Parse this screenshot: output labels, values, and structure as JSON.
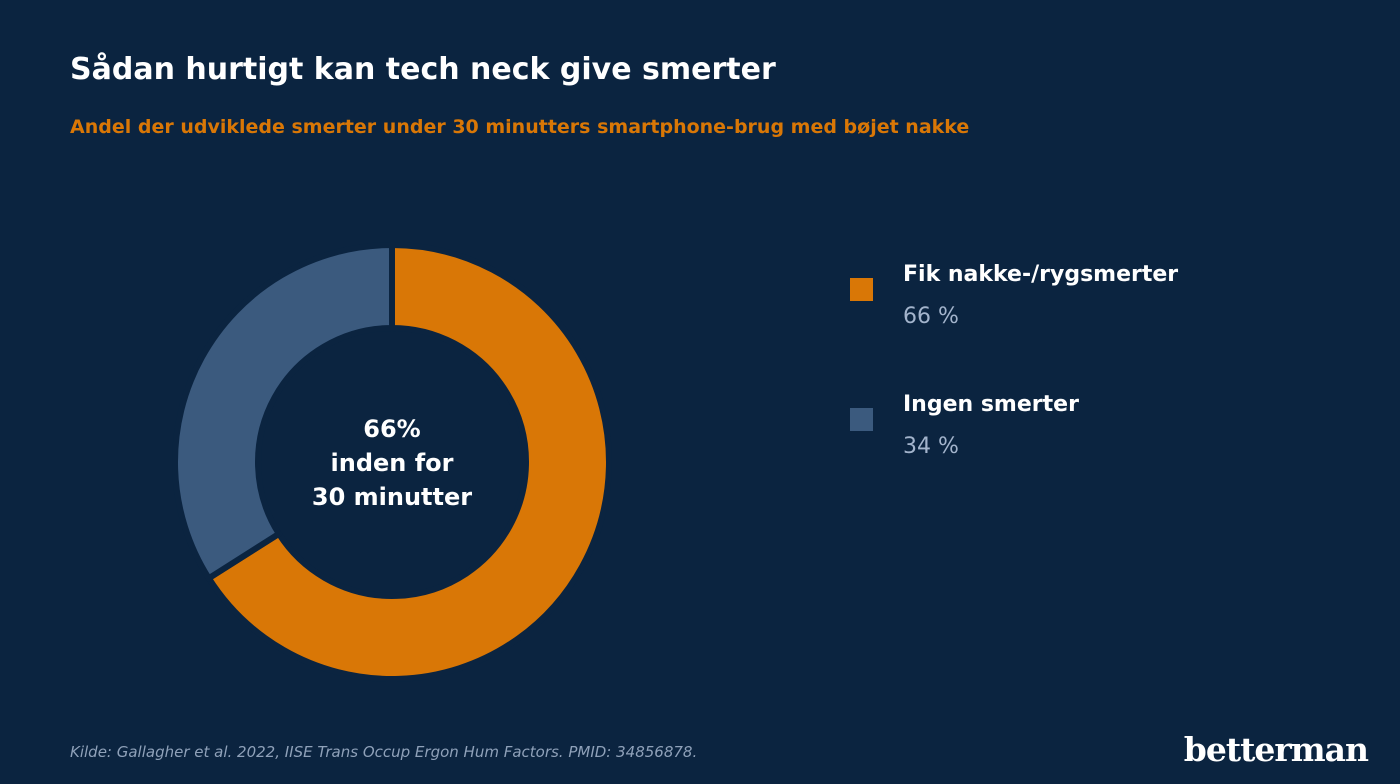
{
  "title": "Sådan hurtigt kan tech neck give smerter",
  "subtitle": "Andel der udviklede smerter under 30 minutters smartphone-brug med bøjet nakke",
  "chart_data": {
    "type": "pie",
    "variant": "donut",
    "center_label": [
      "66%",
      "inden for",
      "30 minutter"
    ],
    "slices": [
      {
        "label": "Fik nakke-/rygsmerter",
        "value": 66,
        "value_label": "66 %",
        "color": "#d97706"
      },
      {
        "label": "Ingen smerter",
        "value": 34,
        "value_label": "34 %",
        "color": "#3b5a7e"
      }
    ],
    "legend_position": "right"
  },
  "source": "Kilde: Gallagher et al. 2022, IISE Trans Occup Ergon Hum Factors. PMID: 34856878.",
  "brand": "betterman",
  "colors": {
    "background": "#0b2440",
    "accent": "#d97706",
    "secondary": "#3b5a7e",
    "muted_text": "#a3b4cc"
  }
}
